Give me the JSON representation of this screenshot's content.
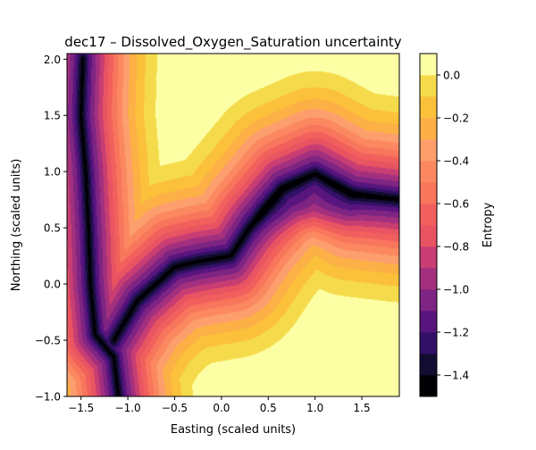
{
  "chart_data": {
    "type": "heatmap",
    "subtype": "filled-contour",
    "title": "dec17 – Dissolved_Oxygen_Saturation uncertainty",
    "xlabel": "Easting (scaled units)",
    "ylabel": "Northing (scaled units)",
    "xlim": [
      -1.65,
      1.9
    ],
    "ylim": [
      -1.0,
      2.05
    ],
    "xticks": [
      -1.5,
      -1.0,
      -0.5,
      0.0,
      0.5,
      1.0,
      1.5
    ],
    "xtick_labels": [
      "−1.5",
      "−1.0",
      "−0.5",
      "0.0",
      "0.5",
      "1.0",
      "1.5"
    ],
    "yticks": [
      -1.0,
      -0.5,
      0.0,
      0.5,
      1.0,
      1.5,
      2.0
    ],
    "ytick_labels": [
      "−1.0",
      "−0.5",
      "0.0",
      "0.5",
      "1.0",
      "1.5",
      "2.0"
    ],
    "colorbar": {
      "label": "Entropy",
      "levels": [
        -1.5,
        -1.4,
        -1.3,
        -1.2,
        -1.1,
        -1.0,
        -0.9,
        -0.8,
        -0.7,
        -0.6,
        -0.5,
        -0.4,
        -0.3,
        -0.2,
        -0.1,
        0.0,
        0.1
      ],
      "ticks": [
        -1.4,
        -1.2,
        -1.0,
        -0.8,
        -0.6,
        -0.4,
        -0.2,
        0.0
      ],
      "tick_labels": [
        "−1.4",
        "−1.2",
        "−1.0",
        "−0.8",
        "−0.6",
        "−0.4",
        "−0.2",
        "0.0"
      ],
      "colors": [
        "#000004",
        "#120d31",
        "#331067",
        "#59157e",
        "#7e2482",
        "#a3307e",
        "#c83e73",
        "#e95462",
        "#f1605d",
        "#f8765c",
        "#fb8861",
        "#fd9f6c",
        "#fcb045",
        "#fbc13b",
        "#f5db4c",
        "#fcffa4"
      ]
    },
    "colormap": "inferno",
    "grid": false,
    "field_features": {
      "low_entropy_ridge_path": [
        [
          -1.48,
          2.0
        ],
        [
          -1.5,
          1.5
        ],
        [
          -1.45,
          1.0
        ],
        [
          -1.42,
          0.5
        ],
        [
          -1.4,
          0.0
        ],
        [
          -1.35,
          -0.45
        ],
        [
          -1.15,
          -0.65
        ],
        [
          -1.1,
          -1.0
        ]
      ],
      "low_entropy_band_path": [
        [
          -1.15,
          -0.5
        ],
        [
          -0.9,
          -0.15
        ],
        [
          -0.5,
          0.15
        ],
        [
          -0.25,
          0.2
        ],
        [
          0.1,
          0.25
        ],
        [
          0.3,
          0.5
        ],
        [
          0.65,
          0.85
        ],
        [
          1.0,
          0.98
        ],
        [
          1.4,
          0.8
        ],
        [
          1.9,
          0.75
        ]
      ],
      "high_entropy_regions": [
        "top-right corner (~0.1)",
        "bottom-right corner (~0.0)"
      ]
    }
  }
}
